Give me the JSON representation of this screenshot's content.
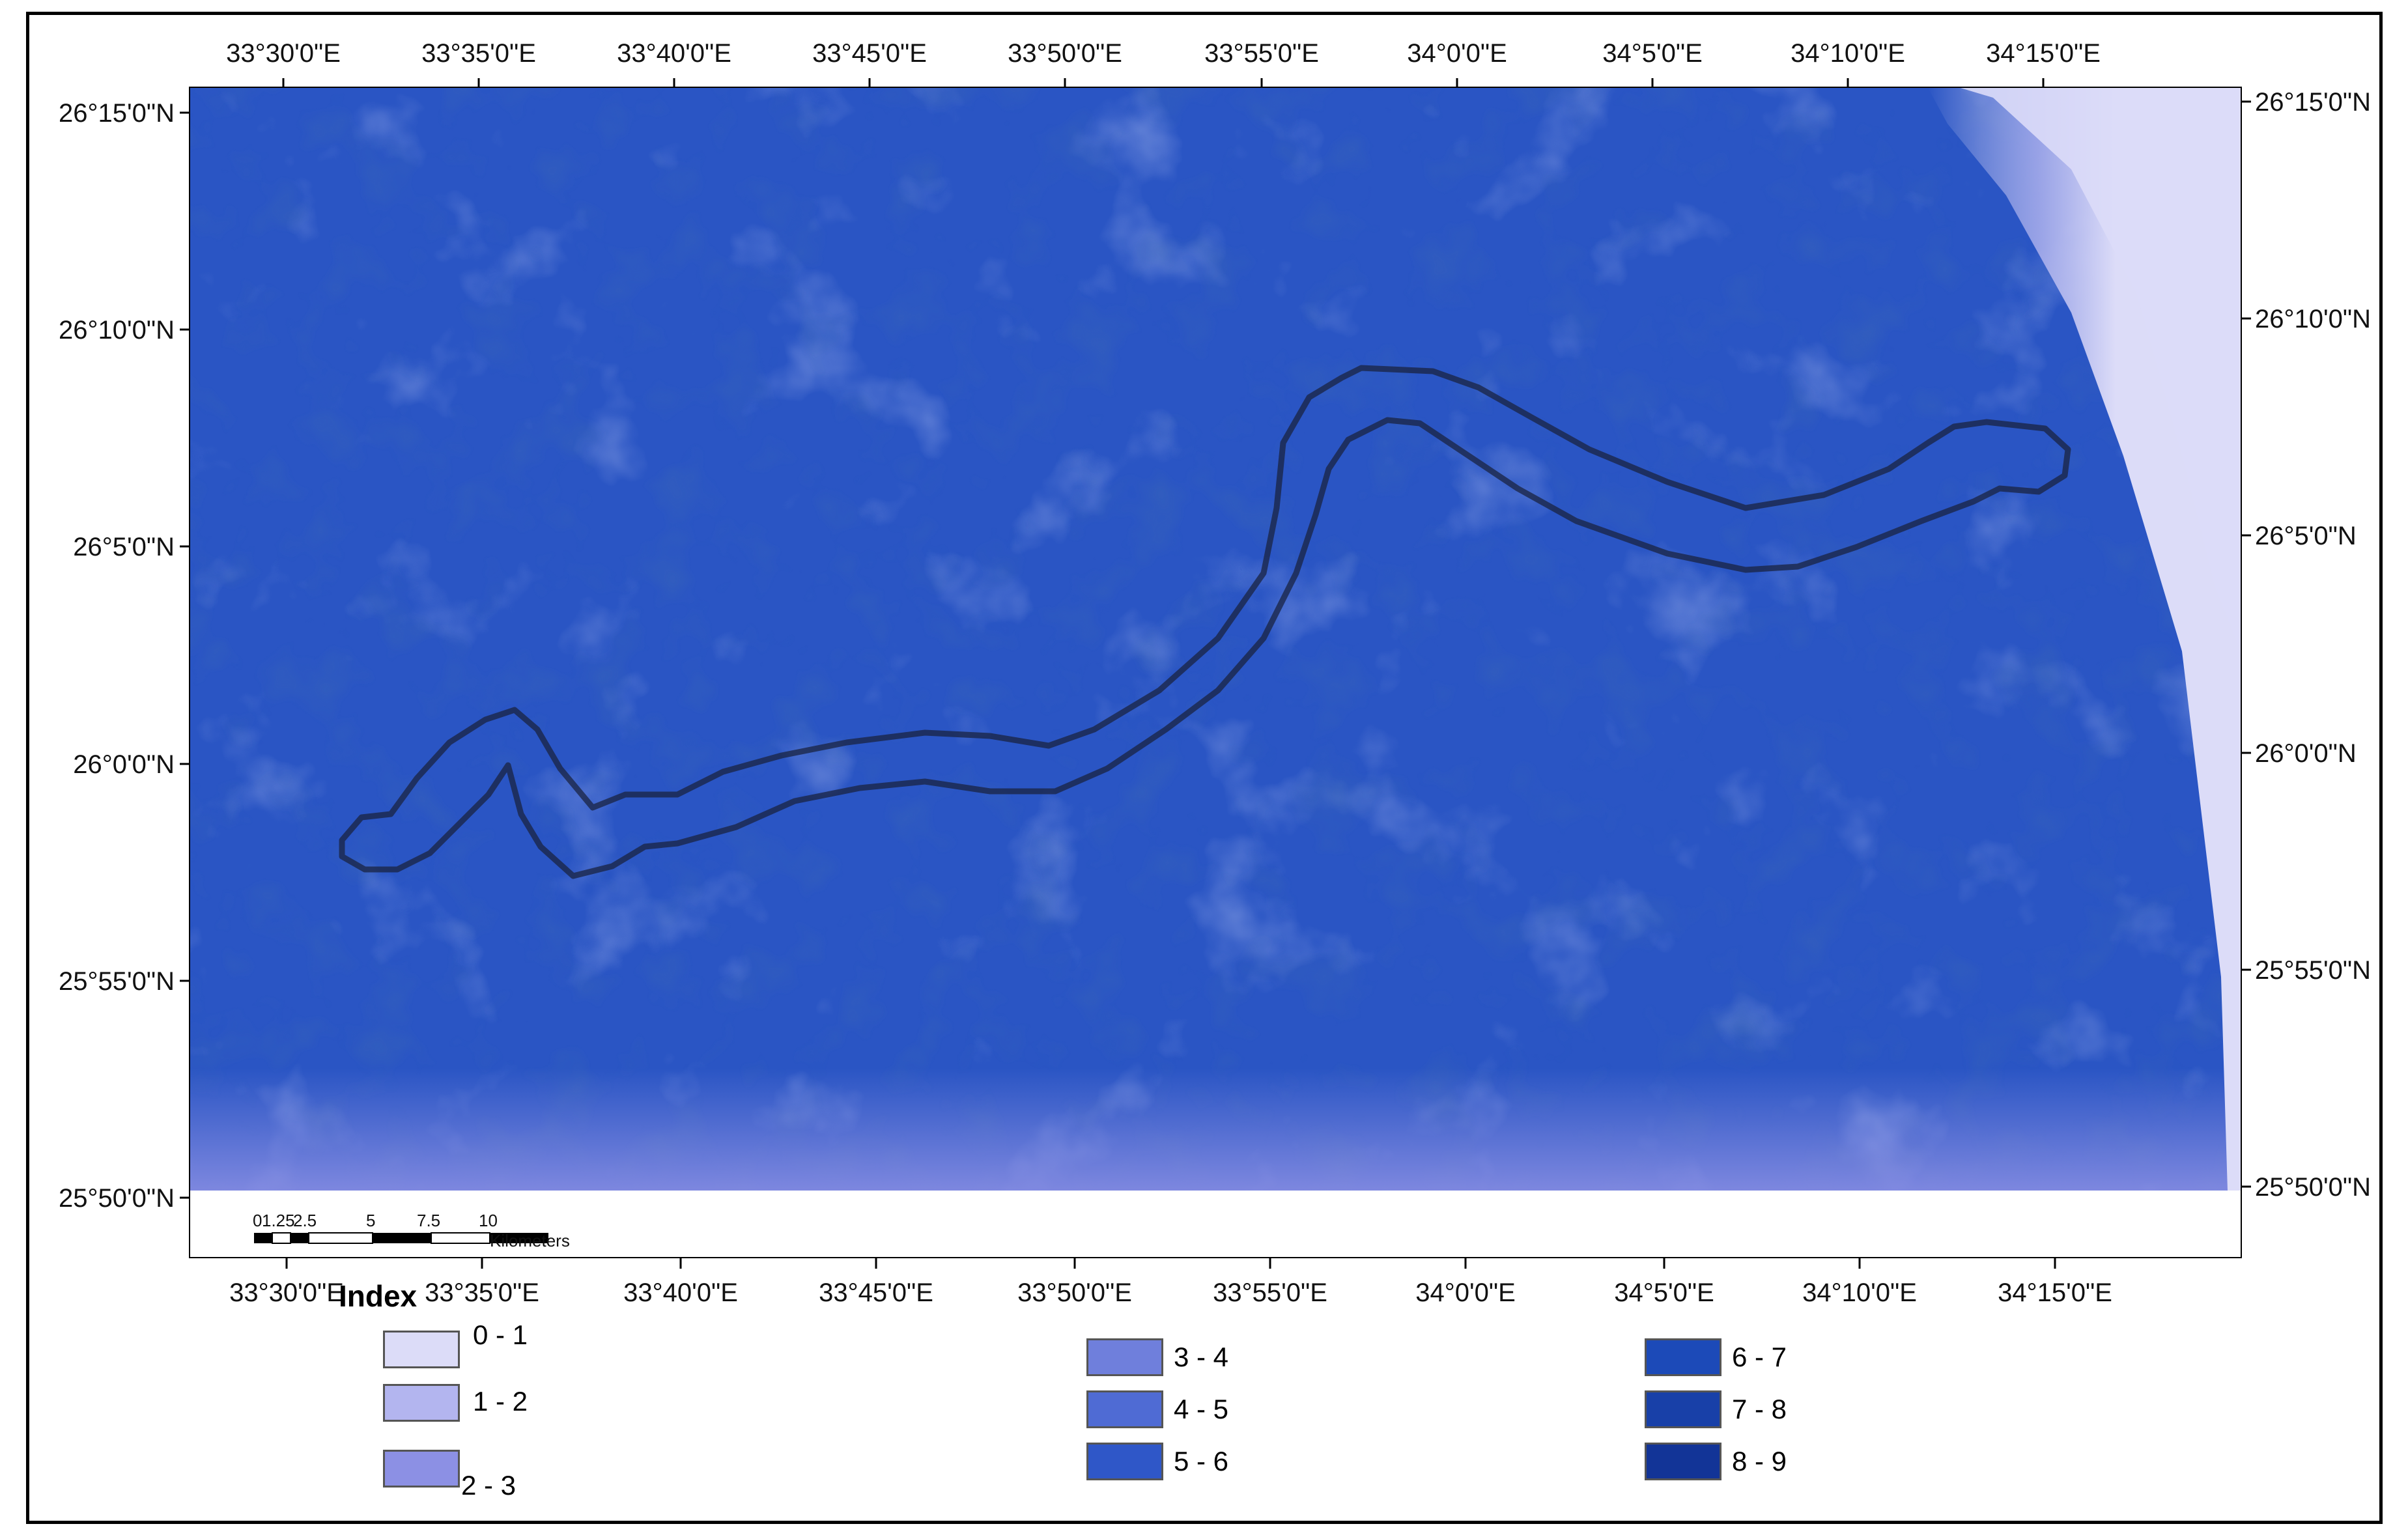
{
  "map": {
    "top_lon_labels": [
      "33°30'0\"E",
      "33°35'0\"E",
      "33°40'0\"E",
      "33°45'0\"E",
      "33°50'0\"E",
      "33°55'0\"E",
      "34°0'0\"E",
      "34°5'0\"E",
      "34°10'0\"E",
      "34°15'0\"E"
    ],
    "bottom_lon_labels": [
      "33°30'0\"E",
      "33°35'0\"E",
      "33°40'0\"E",
      "33°45'0\"E",
      "33°50'0\"E",
      "33°55'0\"E",
      "34°0'0\"E",
      "34°5'0\"E",
      "34°10'0\"E",
      "34°15'0\"E"
    ],
    "left_lat_labels": [
      "26°15'0\"N",
      "26°10'0\"N",
      "26°5'0\"N",
      "26°0'0\"N",
      "25°55'0\"N",
      "25°50'0\"N"
    ],
    "right_lat_labels": [
      "26°15'0\"N",
      "26°10'0\"N",
      "26°5'0\"N",
      "26°0'0\"N",
      "25°55'0\"N",
      "25°50'0\"N"
    ],
    "scale_bar": {
      "ticks": [
        "0",
        "1.25",
        "2.5",
        "5",
        "7.5",
        "10"
      ],
      "unit": "Kilometers"
    }
  },
  "legend": {
    "title": "Index",
    "items": [
      {
        "label": "0 - 1",
        "color": "#dcdcf8"
      },
      {
        "label": "1 - 2",
        "color": "#b3b5ef"
      },
      {
        "label": "2 - 3",
        "color": "#8c90e4"
      },
      {
        "label": "3 - 4",
        "color": "#6f7fdc"
      },
      {
        "label": "4 - 5",
        "color": "#4f6bd4"
      },
      {
        "label": "5 - 6",
        "color": "#2f57c8"
      },
      {
        "label": "6 - 7",
        "color": "#1c4ab8"
      },
      {
        "label": "7 - 8",
        "color": "#1840a8"
      },
      {
        "label": "8 - 9",
        "color": "#123497"
      }
    ]
  }
}
